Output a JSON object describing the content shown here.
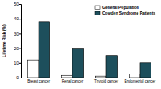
{
  "chart_data": {
    "type": "bar",
    "y_label": "Lifetime Risk (%)",
    "categories": [
      "Breast cancer",
      "Renal cancer",
      "Thyroid cancer",
      "Endometrial cancer"
    ],
    "series": [
      {
        "name": "General Population",
        "color": "#ffffff",
        "values": [
          12,
          1.5,
          1,
          2.5
        ]
      },
      {
        "name": "Cowden Syndrome Patients",
        "color": "#1d4f5c",
        "values": [
          38,
          20,
          15,
          10
        ]
      }
    ],
    "ylim": [
      0,
      50
    ],
    "yticks": [
      0,
      10,
      20,
      30,
      40,
      50
    ],
    "legend": "upper right"
  }
}
